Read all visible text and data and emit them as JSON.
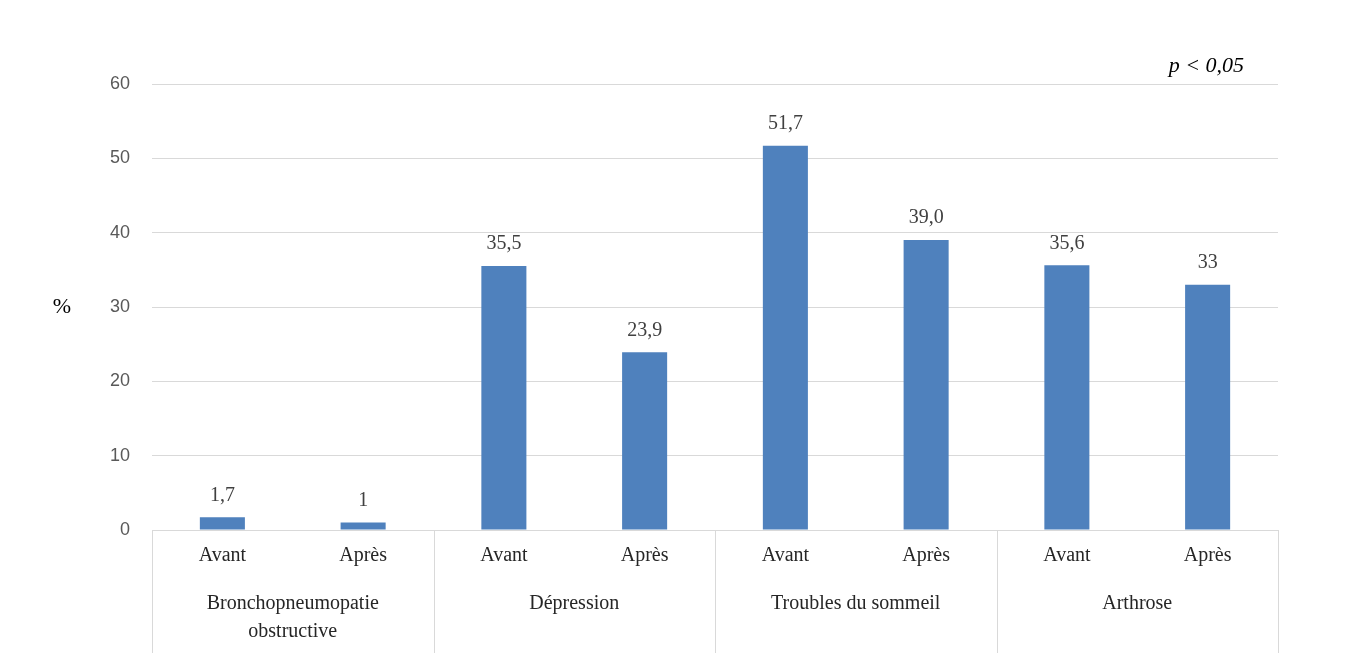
{
  "chart_data": {
    "type": "bar",
    "categories": [
      "Avant",
      "Après",
      "Avant",
      "Après",
      "Avant",
      "Après",
      "Avant",
      "Après"
    ],
    "values": [
      1.7,
      1,
      35.5,
      23.9,
      51.7,
      39.0,
      35.6,
      33
    ],
    "value_labels": [
      "1,7",
      "1",
      "35,5",
      "23,9",
      "51,7",
      "39,0",
      "35,6",
      "33"
    ],
    "color": "#4f81bd",
    "ylabel": "%",
    "ylim": [
      0,
      60
    ],
    "yticks": [
      0,
      10,
      20,
      30,
      40,
      50,
      60
    ],
    "grid": "y",
    "annotations": [
      "Bronchopneumopatie obstructive",
      "Dépression",
      "Troubles du sommeil",
      "Arthrose",
      "p < 0,05"
    ]
  }
}
